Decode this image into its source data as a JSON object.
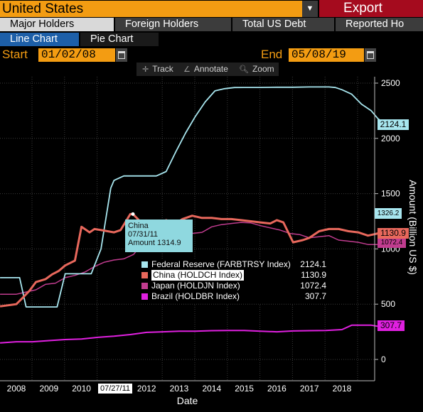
{
  "header": {
    "country": "United States",
    "dropdown_icon": "caret-down-icon",
    "export_label": "Export"
  },
  "tabs": [
    {
      "label": "Major Holders",
      "active": true
    },
    {
      "label": "Foreign Holders",
      "active": false
    },
    {
      "label": "Total US Debt",
      "active": false
    },
    {
      "label": "Reported Ho",
      "active": false
    }
  ],
  "subtabs": [
    {
      "label": "Line Chart",
      "active": true
    },
    {
      "label": "Pie Chart",
      "active": false
    }
  ],
  "dates": {
    "start_label": "Start",
    "start_value": "01/02/08",
    "end_label": "End",
    "end_value": "05/08/19"
  },
  "toolbar": {
    "track": "Track",
    "annotate": "Annotate",
    "zoom": "Zoom"
  },
  "tooltip": {
    "name": "China",
    "date": "07/31/11",
    "amount": "Amount 1314.9"
  },
  "legend": [
    {
      "name": "Federal Reserve (FARBTRSY Index)",
      "value": "2124.1",
      "color": "#a8e6ef"
    },
    {
      "name": "China (HOLDCH Index)",
      "value": "1130.9",
      "color": "#e8685c"
    },
    {
      "name": "Japan (HOLDJN Index)",
      "value": "1072.4",
      "color": "#c13c8f"
    },
    {
      "name": "Brazil (HOLDBR Index)",
      "value": "307.7",
      "color": "#e020e0"
    }
  ],
  "value_tags": {
    "fed": "2124.1",
    "fed_hover": "1326.2",
    "china": "1130.9",
    "japan": "1072.4",
    "brazil": "307.7"
  },
  "highlighted_x_tick": "07/27/11",
  "chart_data": {
    "type": "line",
    "xlabel": "Date",
    "ylabel": "Amount (Billion US $)",
    "ylim": [
      0,
      2600
    ],
    "xlim": [
      2007.5,
      2019.4
    ],
    "y_ticks": [
      "0",
      "500",
      "1000",
      "1500",
      "2000",
      "2500"
    ],
    "x_ticks": [
      {
        "label": "2008",
        "x": 2008.0
      },
      {
        "label": "2009",
        "x": 2009.0
      },
      {
        "label": "2010",
        "x": 2010.0
      },
      {
        "label": "2012",
        "x": 2012.0
      },
      {
        "label": "2013",
        "x": 2013.0
      },
      {
        "label": "2014",
        "x": 2014.0
      },
      {
        "label": "2015",
        "x": 2015.0
      },
      {
        "label": "2016",
        "x": 2016.0
      },
      {
        "label": "2017",
        "x": 2017.0
      },
      {
        "label": "2018",
        "x": 2018.0
      }
    ],
    "series": [
      {
        "name": "Federal Reserve (FARBTRSY Index)",
        "color": "#a8e6ef",
        "x": [
          2007.5,
          2008.1,
          2008.3,
          2008.5,
          2008.8,
          2009.0,
          2009.25,
          2009.5,
          2009.8,
          2010.0,
          2010.3,
          2010.6,
          2010.9,
          2011.0,
          2011.3,
          2011.6,
          2011.9,
          2012.3,
          2012.6,
          2012.9,
          2013.2,
          2013.5,
          2013.8,
          2014.1,
          2014.4,
          2014.7,
          2015.0,
          2015.5,
          2016.0,
          2016.5,
          2017.0,
          2017.3,
          2017.6,
          2017.8,
          2018.0,
          2018.3,
          2018.6,
          2018.9,
          2019.1,
          2019.35
        ],
        "y": [
          740,
          740,
          475,
          475,
          475,
          475,
          475,
          775,
          775,
          775,
          775,
          1000,
          1550,
          1620,
          1660,
          1660,
          1660,
          1660,
          1700,
          1880,
          2050,
          2200,
          2330,
          2430,
          2450,
          2460,
          2461,
          2461,
          2463,
          2463,
          2465,
          2465,
          2465,
          2460,
          2440,
          2400,
          2310,
          2250,
          2180,
          2124.1
        ]
      },
      {
        "name": "China (HOLDCH Index)",
        "color": "#e8685c",
        "x": [
          2007.5,
          2008.0,
          2008.2,
          2008.4,
          2008.6,
          2008.9,
          2009.1,
          2009.3,
          2009.5,
          2009.8,
          2010.0,
          2010.1,
          2010.25,
          2010.4,
          2010.6,
          2010.8,
          2011.0,
          2011.2,
          2011.5,
          2011.58,
          2011.8,
          2012.0,
          2012.3,
          2012.6,
          2012.9,
          2013.1,
          2013.4,
          2013.7,
          2014.0,
          2014.3,
          2014.6,
          2014.9,
          2015.2,
          2015.5,
          2015.8,
          2016.0,
          2016.2,
          2016.5,
          2016.8,
          2017.0,
          2017.3,
          2017.6,
          2017.9,
          2018.2,
          2018.5,
          2018.8,
          2019.1,
          2019.35
        ],
        "y": [
          480,
          500,
          560,
          620,
          700,
          727,
          770,
          800,
          850,
          894,
          1200,
          1180,
          1150,
          1180,
          1170,
          1160,
          1150,
          1170,
          1315,
          1314.9,
          1250,
          1240,
          1180,
          1260,
          1230,
          1270,
          1300,
          1280,
          1280,
          1270,
          1270,
          1260,
          1250,
          1240,
          1230,
          1260,
          1240,
          1060,
          1080,
          1100,
          1160,
          1180,
          1180,
          1160,
          1150,
          1120,
          1140,
          1130.9
        ]
      },
      {
        "name": "Japan (HOLDJN Index)",
        "color": "#c13c8f",
        "x": [
          2007.5,
          2008.0,
          2008.3,
          2008.6,
          2008.9,
          2009.2,
          2009.5,
          2009.8,
          2010.1,
          2010.4,
          2010.7,
          2011.0,
          2011.3,
          2011.6,
          2011.9,
          2012.2,
          2012.5,
          2012.8,
          2013.1,
          2013.4,
          2013.7,
          2014.0,
          2014.3,
          2014.6,
          2014.9,
          2015.2,
          2015.5,
          2015.8,
          2016.1,
          2016.4,
          2016.7,
          2017.0,
          2017.3,
          2017.6,
          2017.9,
          2018.2,
          2018.5,
          2018.8,
          2019.1,
          2019.35
        ],
        "y": [
          590,
          590,
          610,
          630,
          680,
          690,
          740,
          760,
          790,
          840,
          880,
          900,
          910,
          950,
          1060,
          1100,
          1120,
          1120,
          1140,
          1140,
          1150,
          1200,
          1220,
          1230,
          1240,
          1235,
          1210,
          1190,
          1170,
          1140,
          1130,
          1100,
          1110,
          1120,
          1080,
          1070,
          1060,
          1040,
          1040,
          1072.4
        ]
      },
      {
        "name": "Brazil (HOLDBR Index)",
        "color": "#e020e0",
        "x": [
          2007.5,
          2008.0,
          2008.5,
          2009.0,
          2009.5,
          2010.0,
          2010.5,
          2011.0,
          2011.5,
          2012.0,
          2012.5,
          2013.0,
          2013.5,
          2014.0,
          2014.5,
          2015.0,
          2015.5,
          2016.0,
          2016.5,
          2017.0,
          2017.5,
          2018.0,
          2018.3,
          2018.6,
          2018.9,
          2019.1,
          2019.35
        ],
        "y": [
          150,
          160,
          160,
          170,
          180,
          185,
          200,
          210,
          225,
          245,
          250,
          255,
          255,
          260,
          262,
          262,
          255,
          250,
          258,
          260,
          262,
          270,
          310,
          310,
          310,
          300,
          307.7
        ]
      }
    ]
  }
}
